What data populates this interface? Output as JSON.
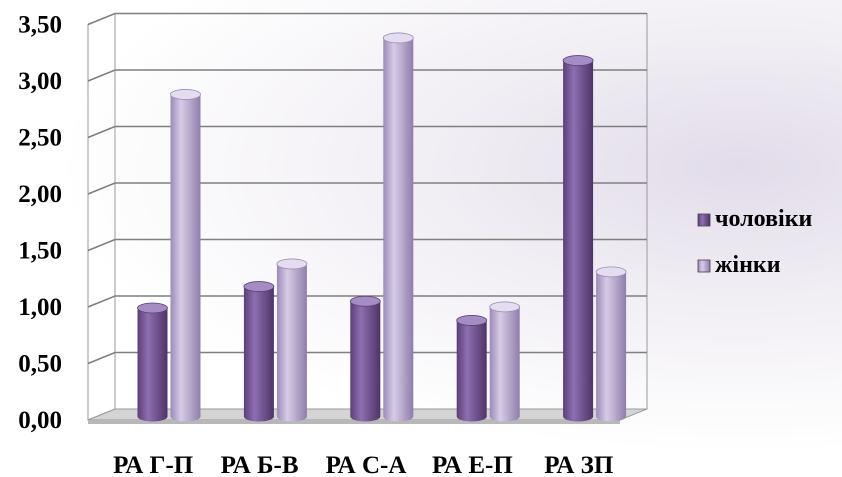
{
  "chart_data": {
    "type": "bar",
    "categories": [
      "РА Г-П",
      "РА Б-В",
      "РА С-А",
      "РА Е-П",
      "РА ЗП"
    ],
    "series": [
      {
        "name": "чоловіки",
        "values": [
          0.96,
          1.15,
          1.02,
          0.85,
          3.15
        ],
        "color": "#7a5a9a"
      },
      {
        "name": "жінки",
        "values": [
          2.85,
          1.35,
          3.35,
          0.97,
          1.28
        ],
        "color": "#b3a3cc"
      }
    ],
    "yticks": [
      "0,00",
      "0,50",
      "1,00",
      "1,50",
      "2,00",
      "2,50",
      "3,00",
      "3,50"
    ],
    "ylim": [
      0,
      3.5
    ],
    "grid": true,
    "legend_position": "right"
  }
}
